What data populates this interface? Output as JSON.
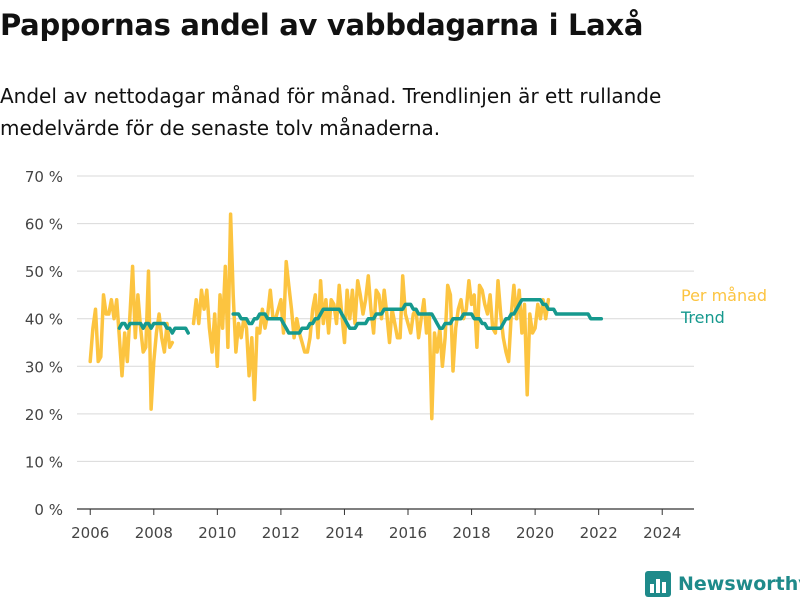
{
  "title": "Pappornas andel av vabbdagarna i Laxå",
  "subtitle": "Andel av nettodagar månad för månad. Trendlinjen är ett rullande medelvärde för de senaste tolv månaderna.",
  "brand": {
    "name": "Newsworthy",
    "icon": "bar-chart-logo-icon",
    "color": "#1e8a8a"
  },
  "chart_data": {
    "type": "line",
    "x_tick_labels": [
      "2006",
      "2008",
      "2010",
      "2012",
      "2014",
      "2016",
      "2018",
      "2020",
      "2022",
      "2024"
    ],
    "y_tick_labels": [
      "0 %",
      "10 %",
      "20 %",
      "30 %",
      "40 %",
      "50 %",
      "60 %",
      "70 %"
    ],
    "x_range": [
      "2005-08",
      "2025-01"
    ],
    "ylim": [
      0,
      70
    ],
    "y_unit": "%",
    "grid": true,
    "legend": "right, direct labels at line ends",
    "series": [
      {
        "name": "Per månad",
        "color": "#fcc440",
        "x_start": "2006-01",
        "values": [
          31,
          38,
          42,
          31,
          32,
          45,
          41,
          41,
          44,
          40,
          44,
          36,
          28,
          37,
          31,
          41,
          51,
          36,
          45,
          38,
          33,
          34,
          50,
          21,
          31,
          37,
          41,
          36,
          33,
          39,
          34,
          35,
          null,
          null,
          null,
          null,
          null,
          null,
          null,
          39,
          44,
          39,
          46,
          42,
          46,
          38,
          33,
          41,
          30,
          45,
          38,
          51,
          34,
          62,
          45,
          33,
          39,
          36,
          40,
          38,
          28,
          36,
          23,
          38,
          37,
          42,
          38,
          41,
          46,
          40,
          40,
          42,
          44,
          37,
          52,
          47,
          42,
          36,
          40,
          37,
          35,
          33,
          33,
          36,
          42,
          45,
          36,
          48,
          39,
          44,
          37,
          44,
          43,
          39,
          47,
          41,
          35,
          46,
          40,
          46,
          39,
          48,
          45,
          41,
          44,
          49,
          42,
          37,
          46,
          45,
          40,
          46,
          41,
          35,
          42,
          39,
          36,
          36,
          49,
          41,
          39,
          37,
          41,
          42,
          36,
          40,
          44,
          37,
          41,
          19,
          37,
          33,
          38,
          30,
          36,
          47,
          45,
          29,
          38,
          42,
          44,
          40,
          42,
          48,
          43,
          45,
          34,
          47,
          46,
          43,
          41,
          45,
          38,
          37,
          48,
          41,
          36,
          33,
          31,
          41,
          47,
          40,
          46,
          37,
          43,
          24,
          41,
          37,
          38,
          43,
          40,
          44,
          40,
          44
        ]
      },
      {
        "name": "Trend",
        "color": "#16998e",
        "x_start": "2006-12",
        "values": [
          38,
          39,
          39,
          38,
          39,
          39,
          39,
          39,
          39,
          38,
          39,
          39,
          38,
          39,
          39,
          39,
          39,
          39,
          38,
          38,
          37,
          38,
          38,
          38,
          38,
          38,
          37,
          null,
          null,
          null,
          null,
          null,
          null,
          null,
          null,
          null,
          null,
          null,
          null,
          null,
          null,
          null,
          null,
          41,
          41,
          41,
          40,
          40,
          40,
          39,
          39,
          40,
          40,
          41,
          41,
          41,
          40,
          40,
          40,
          40,
          40,
          40,
          39,
          38,
          37,
          37,
          37,
          37,
          37,
          38,
          38,
          38,
          39,
          39,
          40,
          40,
          41,
          42,
          42,
          42,
          42,
          42,
          42,
          42,
          41,
          40,
          39,
          38,
          38,
          38,
          39,
          39,
          39,
          39,
          40,
          40,
          40,
          41,
          41,
          41,
          42,
          42,
          42,
          42,
          42,
          42,
          42,
          42,
          43,
          43,
          43,
          42,
          42,
          41,
          41,
          41,
          41,
          41,
          41,
          40,
          39,
          38,
          38,
          39,
          39,
          39,
          40,
          40,
          40,
          40,
          41,
          41,
          41,
          41,
          40,
          40,
          40,
          39,
          39,
          38,
          38,
          38,
          38,
          38,
          38,
          39,
          40,
          40,
          41,
          41,
          42,
          43,
          44,
          44,
          44,
          44,
          44,
          44,
          44,
          44,
          43,
          43,
          42,
          42,
          42,
          41,
          41,
          41,
          41,
          41,
          41,
          41,
          41,
          41,
          41,
          41,
          41,
          41,
          40,
          40,
          40,
          40,
          40
        ]
      }
    ]
  }
}
